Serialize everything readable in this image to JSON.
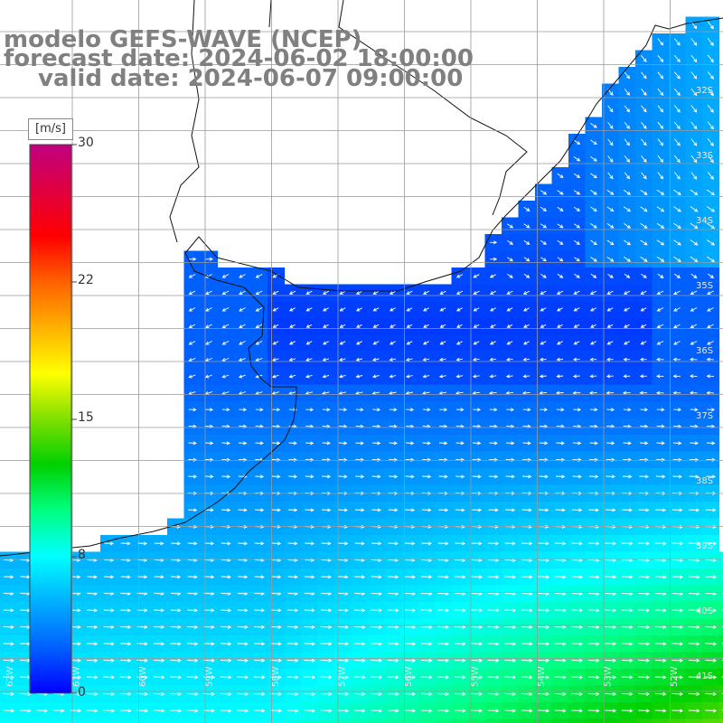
{
  "title": {
    "line1": "modelo GEFS-WAVE (NCEP)",
    "line2": "forecast date: 2024-06-02 18:00:00",
    "line3": "valid date: 2024-06-07 09:00:00"
  },
  "colorbar": {
    "units": "[m/s]",
    "ticks": [
      "30",
      "22",
      "15",
      "8",
      "0"
    ],
    "range": [
      0,
      30
    ],
    "colors": [
      "#0000ff",
      "#0060ff",
      "#00b0ff",
      "#00ffff",
      "#00ff80",
      "#00d000",
      "#80e000",
      "#ffff00",
      "#ffb000",
      "#ff6000",
      "#ff0000",
      "#e00040",
      "#c00080"
    ]
  },
  "grid_labels": {
    "right": [
      "32S",
      "33S",
      "34S",
      "35S",
      "36S",
      "37S",
      "38S",
      "39S",
      "40S",
      "41S"
    ],
    "bottom": [
      "62W",
      "61W",
      "60W",
      "59W",
      "58W",
      "57W",
      "56W",
      "55W",
      "54W",
      "53W",
      "52W"
    ]
  },
  "icons": [
    "wind-arrow-icon"
  ]
}
